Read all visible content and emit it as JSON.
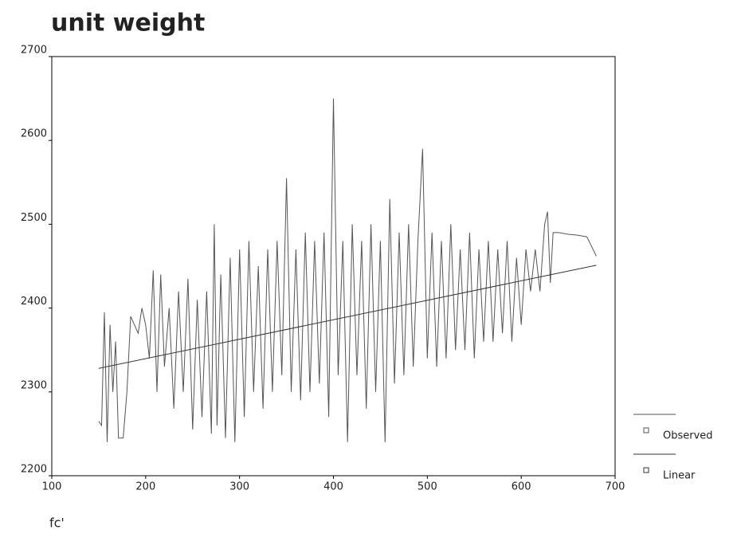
{
  "chart_data": {
    "type": "line",
    "title": "unit weight",
    "x_label": "fc'",
    "xlim": [
      100,
      700
    ],
    "xticks": [
      100,
      200,
      300,
      400,
      500,
      600,
      700
    ],
    "ylim": [
      2200,
      2700
    ],
    "yticks": [
      2200,
      2300,
      2400,
      2500,
      2600,
      2700
    ],
    "legend": "right",
    "series": [
      {
        "name": "Observed",
        "color": "#555555",
        "x": [
          150,
          153,
          156,
          159,
          162,
          165,
          168,
          171,
          176,
          180,
          184,
          188,
          192,
          196,
          200,
          204,
          208,
          212,
          216,
          220,
          225,
          230,
          235,
          240,
          245,
          250,
          255,
          260,
          265,
          270,
          273,
          276,
          280,
          285,
          290,
          295,
          300,
          305,
          310,
          315,
          320,
          325,
          330,
          335,
          340,
          345,
          350,
          355,
          360,
          365,
          370,
          375,
          380,
          385,
          390,
          395,
          400,
          405,
          410,
          415,
          420,
          425,
          430,
          435,
          440,
          445,
          450,
          455,
          460,
          465,
          470,
          475,
          480,
          485,
          490,
          495,
          500,
          505,
          510,
          515,
          520,
          525,
          530,
          535,
          540,
          545,
          550,
          555,
          560,
          565,
          570,
          575,
          580,
          585,
          590,
          595,
          600,
          605,
          610,
          615,
          620,
          625,
          628,
          631,
          634,
          640,
          650,
          660,
          670,
          680
        ],
        "values": [
          2265,
          2260,
          2395,
          2240,
          2380,
          2300,
          2360,
          2245,
          2245,
          2300,
          2390,
          2380,
          2370,
          2400,
          2380,
          2340,
          2445,
          2300,
          2440,
          2330,
          2400,
          2280,
          2420,
          2300,
          2435,
          2255,
          2410,
          2270,
          2420,
          2250,
          2500,
          2260,
          2440,
          2245,
          2460,
          2240,
          2470,
          2270,
          2480,
          2300,
          2450,
          2280,
          2470,
          2300,
          2480,
          2320,
          2555,
          2300,
          2470,
          2290,
          2490,
          2300,
          2480,
          2310,
          2490,
          2270,
          2650,
          2320,
          2480,
          2240,
          2500,
          2320,
          2480,
          2280,
          2500,
          2300,
          2480,
          2240,
          2530,
          2310,
          2490,
          2320,
          2500,
          2330,
          2480,
          2590,
          2340,
          2490,
          2330,
          2480,
          2340,
          2500,
          2350,
          2470,
          2350,
          2490,
          2340,
          2470,
          2360,
          2480,
          2360,
          2470,
          2370,
          2480,
          2360,
          2460,
          2380,
          2470,
          2420,
          2470,
          2420,
          2500,
          2515,
          2430,
          2490,
          2490,
          2488,
          2487,
          2485,
          2462
        ]
      },
      {
        "name": "Linear",
        "color": "#333333",
        "x": [
          150,
          680
        ],
        "values": [
          2328,
          2451
        ]
      }
    ]
  }
}
